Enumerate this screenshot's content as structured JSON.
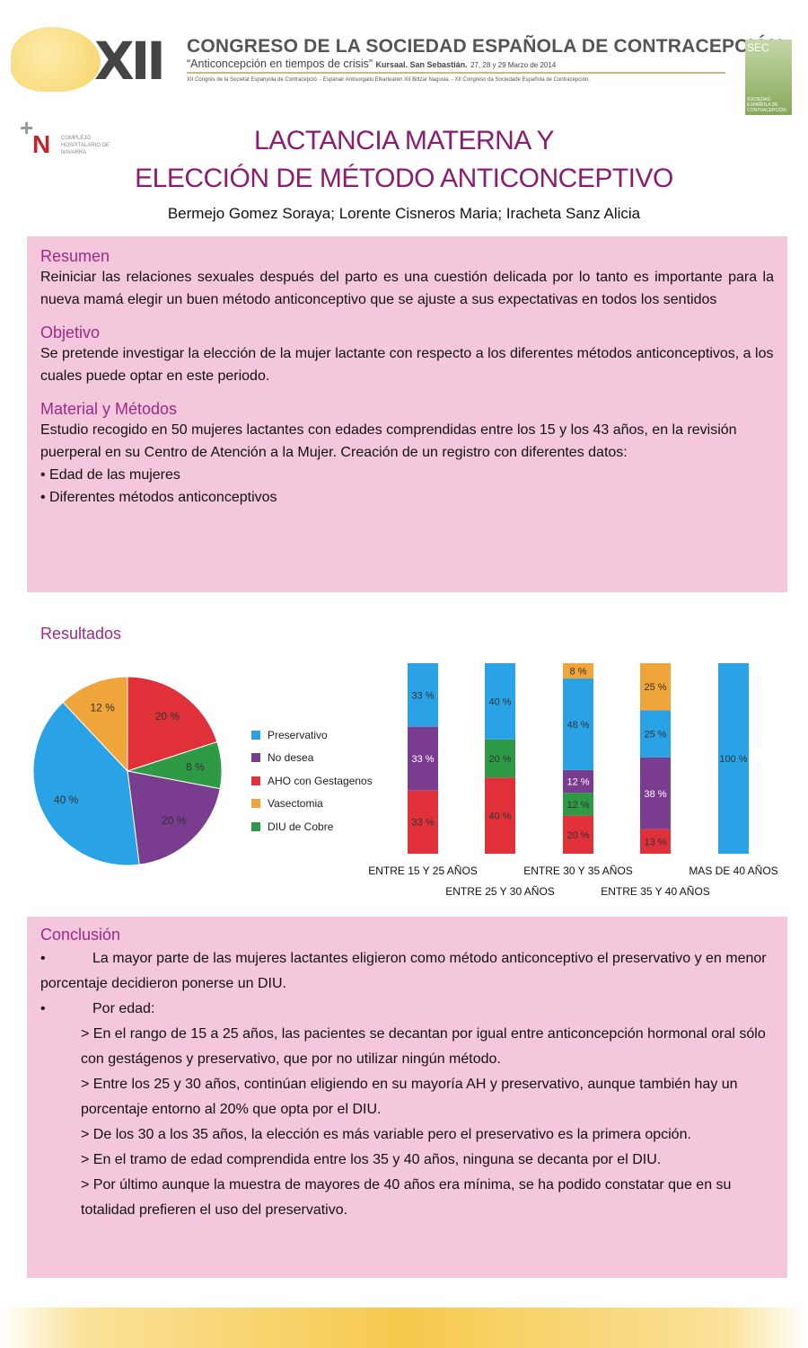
{
  "header": {
    "roman": "XII",
    "congress": "CONGRESO DE LA SOCIEDAD ESPAÑOLA DE CONTRACEPCIÓN",
    "motto": "“Anticoncepción en tiempos de crisis”",
    "venue": "Kursaal. San Sebastián.",
    "dates": "27, 28 y 29 Marzo de 2014",
    "subline": "XII Congrés de la Societat Espanyola de Contracepció. - Espanair Antisorgailu Elkartearen XII Biltzar Nagusia. - XII Congreso da Sociedade Española de Contracepción.",
    "sec_logo": "SEC",
    "sec_logo_text": "SOCIEDAD ESPAÑOLA DE CONTRACEPCIÓN"
  },
  "hospital": {
    "name": "COMPLEJO HOSPITALARIO DE NAVARRA",
    "letter": "N"
  },
  "title": {
    "line1": "LACTANCIA MATERNA  Y",
    "line2": "ELECCIÓN DE MÉTODO ANTICONCEPTIVO"
  },
  "authors": "Bermejo Gomez Soraya;  Lorente Cisneros Maria; Iracheta Sanz Alicia",
  "resumen": {
    "heading": "Resumen",
    "text": "Reiniciar las relaciones sexuales después del parto es una cuestión delicada por lo tanto es importante para la nueva mamá elegir un buen método anticonceptivo que se ajuste a sus expectativas en todos los sentidos"
  },
  "objetivo": {
    "heading": "Objetivo",
    "text": "Se pretende investigar la elección de la mujer lactante con respecto a los diferentes métodos anticonceptivos, a los cuales puede optar en este periodo."
  },
  "material": {
    "heading": "Material y Métodos",
    "text": "Estudio recogido en 50 mujeres lactantes con edades comprendidas entre los 15 y los 43 años, en la revisión puerperal en su Centro de Atención a la Mujer. Creación de un registro con diferentes datos:",
    "bullets": [
      "• Edad de las mujeres",
      "• Diferentes métodos anticonceptivos"
    ]
  },
  "resultados": {
    "heading": "Resultados"
  },
  "chart_data": [
    {
      "type": "pie",
      "title": "",
      "legend": "right",
      "slices": [
        {
          "label": "AHO con Gestagenos",
          "value": 20,
          "text": "20 %",
          "color": "#e0303a"
        },
        {
          "label": "DIU de Cobre",
          "value": 8,
          "text": "8 %",
          "color": "#2e9a45"
        },
        {
          "label": "No desea",
          "value": 20,
          "text": "20 %",
          "color": "#7a3c8e"
        },
        {
          "label": "Preservativo",
          "value": 40,
          "text": "40 %",
          "color": "#2aa3e6"
        },
        {
          "label": "Vasectomia",
          "value": 12,
          "text": "12 %",
          "color": "#f0a53a"
        }
      ],
      "legend_entries": [
        {
          "label": "Preservativo",
          "color": "#2aa3e6"
        },
        {
          "label": "No desea",
          "color": "#7a3c8e"
        },
        {
          "label": "AHO con Gestagenos",
          "color": "#e0303a"
        },
        {
          "label": "Vasectomia",
          "color": "#f0a53a"
        },
        {
          "label": "DIU de Cobre",
          "color": "#2e9a45"
        }
      ]
    },
    {
      "type": "bar",
      "stacked": true,
      "ylim": [
        0,
        100
      ],
      "categories": [
        "ENTRE 15 Y 25 AÑOS",
        "ENTRE 25 Y 30 AÑOS",
        "ENTRE 30 Y 35 AÑOS",
        "ENTRE 35 Y 40 AÑOS",
        "MAS DE 40 AÑOS"
      ],
      "stacks": [
        [
          {
            "series": "AHO con Gestagenos",
            "value": 33,
            "text": "33 %"
          },
          {
            "series": "No desea",
            "value": 33,
            "text": "33 %"
          },
          {
            "series": "Preservativo",
            "value": 33,
            "text": "33 %"
          }
        ],
        [
          {
            "series": "AHO con Gestagenos",
            "value": 40,
            "text": "40 %"
          },
          {
            "series": "DIU de Cobre",
            "value": 20,
            "text": "20 %"
          },
          {
            "series": "Preservativo",
            "value": 40,
            "text": "40 %"
          }
        ],
        [
          {
            "series": "AHO con Gestagenos",
            "value": 20,
            "text": "20 %"
          },
          {
            "series": "DIU de Cobre",
            "value": 12,
            "text": "12 %"
          },
          {
            "series": "No desea",
            "value": 12,
            "text": "12 %"
          },
          {
            "series": "Preservativo",
            "value": 48,
            "text": "48 %"
          },
          {
            "series": "Vasectomia",
            "value": 8,
            "text": "8 %"
          }
        ],
        [
          {
            "series": "AHO con Gestagenos",
            "value": 13,
            "text": "13 %"
          },
          {
            "series": "No desea",
            "value": 38,
            "text": "38 %"
          },
          {
            "series": "Preservativo",
            "value": 25,
            "text": "25 %"
          },
          {
            "series": "Vasectomia",
            "value": 25,
            "text": "25 %"
          }
        ],
        [
          {
            "series": "Preservativo",
            "value": 100,
            "text": "100 %"
          }
        ]
      ]
    }
  ],
  "conclusion": {
    "heading": "Conclusión",
    "bullet1": "La mayor parte de las mujeres lactantes eligieron como método anticonceptivo el preservativo y en menor porcentaje decidieron ponerse un DIU.",
    "bullet2": "Por edad:",
    "items": [
      "> En el rango de 15 a 25 años, las pacientes se decantan por igual entre anticoncepción hormonal oral sólo con gestágenos y preservativo, que por no utilizar ningún método.",
      "> Entre los 25 y 30 años, continúan eligiendo en su mayoría AH y preservativo, aunque también hay un porcentaje entorno al 20% que opta por el DIU.",
      "> De los 30 a los 35 años, la elección es más variable pero el preservativo es la primera opción.",
      "> En el tramo de edad comprendida entre los 35 y 40 años, ninguna se decanta por el DIU.",
      "> Por último aunque la muestra de mayores de 40 años era mínima, se ha podido constatar que en su totalidad prefieren el uso del preservativo."
    ]
  }
}
